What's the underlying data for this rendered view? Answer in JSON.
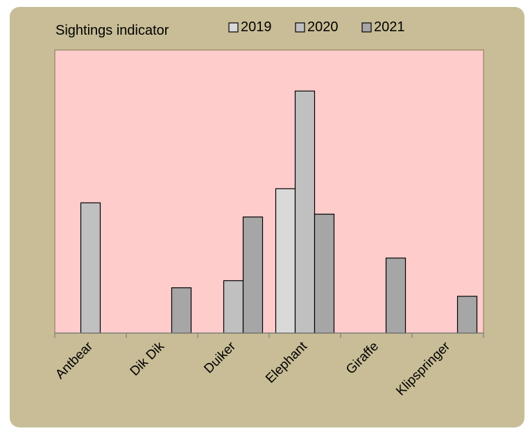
{
  "chart_data": {
    "type": "bar",
    "title": "Sightings indicator",
    "xlabel": "",
    "ylabel": "",
    "categories": [
      "Antbear",
      "Dik Dik",
      "Duiker",
      "Elephant",
      "Giraffe",
      "Klipspringer"
    ],
    "series": [
      {
        "name": "2019",
        "color": "#d9d9d9",
        "values": [
          0,
          0,
          0,
          10.2,
          0,
          0
        ]
      },
      {
        "name": "2020",
        "color": "#c0c0c0",
        "values": [
          9.2,
          0,
          3.7,
          17.1,
          0,
          0
        ]
      },
      {
        "name": "2021",
        "color": "#a6a6a6",
        "values": [
          0,
          3.2,
          8.2,
          8.4,
          5.3,
          2.6
        ]
      }
    ],
    "ylim": [
      0,
      20
    ],
    "grid": false,
    "legend_position": "top",
    "colors": {
      "card_background": "#c8bd96",
      "plot_background": "#ffcccc",
      "plot_border": "#a09070",
      "bar_border": "#000000"
    }
  }
}
